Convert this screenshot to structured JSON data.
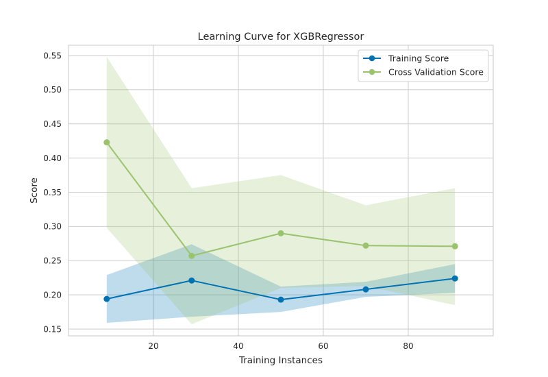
{
  "chart_data": {
    "type": "line",
    "title": "Learning Curve for XGBRegressor",
    "xlabel": "Training Instances",
    "ylabel": "Score",
    "xlim": [
      0,
      100
    ],
    "ylim": [
      0.14,
      0.565
    ],
    "xticks": [
      20,
      40,
      60,
      80
    ],
    "yticks": [
      0.15,
      0.2,
      0.25,
      0.3,
      0.35,
      0.4,
      0.45,
      0.5,
      0.55
    ],
    "grid": true,
    "legend_position": "top-right",
    "x": [
      9,
      29,
      50,
      70,
      91
    ],
    "series": [
      {
        "name": "Training Score",
        "color": "#0072b2",
        "values": [
          0.194,
          0.221,
          0.193,
          0.208,
          0.224
        ],
        "band_upper": [
          0.229,
          0.274,
          0.212,
          0.219,
          0.245
        ],
        "band_lower": [
          0.159,
          0.168,
          0.175,
          0.197,
          0.203
        ]
      },
      {
        "name": "Cross Validation Score",
        "color": "#9bc36e",
        "values": [
          0.423,
          0.257,
          0.29,
          0.272,
          0.271
        ],
        "band_upper": [
          0.548,
          0.356,
          0.375,
          0.331,
          0.356
        ],
        "band_lower": [
          0.298,
          0.157,
          0.21,
          0.213,
          0.185
        ]
      }
    ]
  }
}
